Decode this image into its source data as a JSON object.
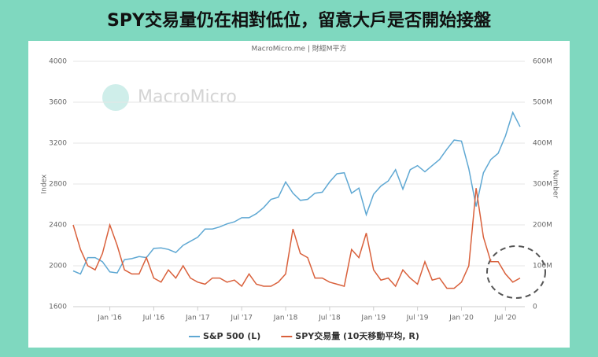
{
  "chart_data": {
    "type": "line",
    "title": "SPY交易量仍在相對低位，留意大戶是否開始接盤",
    "subtitle": "MacroMicro.me | 財經M平方",
    "watermark": "MacroMicro",
    "ylabel": "Index",
    "y2label": "Number",
    "x": [
      "2015-08",
      "2015-09",
      "2015-10",
      "2015-11",
      "2015-12",
      "2016-01",
      "2016-02",
      "2016-03",
      "2016-04",
      "2016-05",
      "2016-06",
      "2016-07",
      "2016-08",
      "2016-09",
      "2016-10",
      "2016-11",
      "2016-12",
      "2017-01",
      "2017-02",
      "2017-03",
      "2017-04",
      "2017-05",
      "2017-06",
      "2017-07",
      "2017-08",
      "2017-09",
      "2017-10",
      "2017-11",
      "2017-12",
      "2018-01",
      "2018-02",
      "2018-03",
      "2018-04",
      "2018-05",
      "2018-06",
      "2018-07",
      "2018-08",
      "2018-09",
      "2018-10",
      "2018-11",
      "2018-12",
      "2019-01",
      "2019-02",
      "2019-03",
      "2019-04",
      "2019-05",
      "2019-06",
      "2019-07",
      "2019-08",
      "2019-09",
      "2019-10",
      "2019-11",
      "2019-12",
      "2020-01",
      "2020-02",
      "2020-03",
      "2020-04",
      "2020-05",
      "2020-06",
      "2020-07",
      "2020-08",
      "2020-09"
    ],
    "xlim": [
      "2015-08",
      "2020-09"
    ],
    "xticks": [
      {
        "value": "2016-01",
        "label": "Jan '16"
      },
      {
        "value": "2016-07",
        "label": "Jul '16"
      },
      {
        "value": "2017-01",
        "label": "Jan '17"
      },
      {
        "value": "2017-07",
        "label": "Jul '17"
      },
      {
        "value": "2018-01",
        "label": "Jan '18"
      },
      {
        "value": "2018-07",
        "label": "Jul '18"
      },
      {
        "value": "2019-01",
        "label": "Jan '19"
      },
      {
        "value": "2019-07",
        "label": "Jul '19"
      },
      {
        "value": "2020-01",
        "label": "Jan '20"
      },
      {
        "value": "2020-07",
        "label": "Jul '20"
      }
    ],
    "ylim": [
      1600,
      4000
    ],
    "yticks": [
      1600,
      2000,
      2400,
      2800,
      3200,
      3600,
      4000
    ],
    "y2lim": [
      0,
      600000000
    ],
    "y2ticks": [
      0,
      {
        "value": 100000000,
        "label": "100M"
      },
      {
        "value": 200000000,
        "label": "200M"
      },
      {
        "value": 300000000,
        "label": "300M"
      },
      {
        "value": 400000000,
        "label": "400M"
      },
      {
        "value": 500000000,
        "label": "500M"
      },
      {
        "value": 600000000,
        "label": "600M"
      }
    ],
    "grid": true,
    "legend": "bottom",
    "series": [
      {
        "name": "S&P 500 (L)",
        "color": "#5fa8d3",
        "values": [
          1950,
          1920,
          2080,
          2080,
          2040,
          1940,
          1930,
          2060,
          2070,
          2090,
          2080,
          2170,
          2175,
          2160,
          2130,
          2200,
          2240,
          2280,
          2360,
          2360,
          2380,
          2410,
          2430,
          2470,
          2470,
          2510,
          2570,
          2650,
          2670,
          2820,
          2710,
          2640,
          2650,
          2710,
          2720,
          2820,
          2900,
          2910,
          2710,
          2760,
          2500,
          2700,
          2780,
          2830,
          2940,
          2750,
          2940,
          2980,
          2920,
          2980,
          3040,
          3140,
          3230,
          3220,
          2950,
          2580,
          2910,
          3040,
          3100,
          3270,
          3500,
          3360
        ]
      },
      {
        "name": "SPY交易量 (10天移動平均, R)",
        "color": "#d9603b",
        "axis": "y2",
        "values": [
          200000000,
          140000000,
          100000000,
          90000000,
          130000000,
          200000000,
          150000000,
          90000000,
          80000000,
          80000000,
          120000000,
          70000000,
          60000000,
          90000000,
          70000000,
          100000000,
          70000000,
          60000000,
          55000000,
          70000000,
          70000000,
          60000000,
          65000000,
          50000000,
          80000000,
          55000000,
          50000000,
          50000000,
          60000000,
          80000000,
          190000000,
          130000000,
          120000000,
          70000000,
          70000000,
          60000000,
          55000000,
          50000000,
          140000000,
          120000000,
          180000000,
          90000000,
          65000000,
          70000000,
          50000000,
          90000000,
          70000000,
          55000000,
          110000000,
          65000000,
          70000000,
          45000000,
          45000000,
          60000000,
          100000000,
          290000000,
          170000000,
          110000000,
          110000000,
          80000000,
          60000000,
          70000000
        ]
      }
    ]
  }
}
